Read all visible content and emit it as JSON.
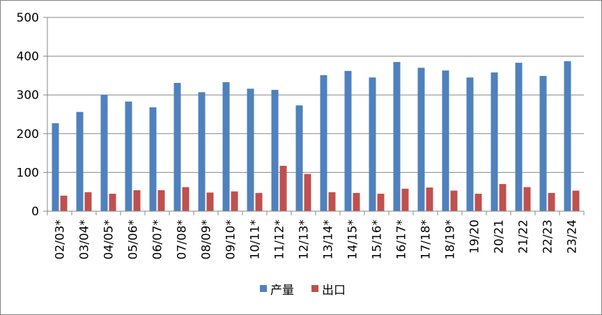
{
  "chart_data": {
    "type": "bar",
    "categories": [
      "02/03*",
      "03/04*",
      "04/05*",
      "05/06*",
      "06/07*",
      "07/08*",
      "08/09*",
      "09/10*",
      "10/11*",
      "11/12*",
      "12/13*",
      "13/14*",
      "14/15*",
      "15/16*",
      "16/17*",
      "17/18*",
      "18/19*",
      "19/20",
      "20/21",
      "21/22",
      "22/23",
      "23/24"
    ],
    "series": [
      {
        "name": "产量",
        "color": "#4F81BD",
        "values": [
          227,
          256,
          300,
          283,
          268,
          331,
          307,
          333,
          316,
          313,
          273,
          351,
          362,
          345,
          385,
          370,
          363,
          345,
          358,
          383,
          349,
          387
        ]
      },
      {
        "name": "出口",
        "color": "#C0504D",
        "values": [
          40,
          49,
          45,
          54,
          54,
          62,
          48,
          51,
          47,
          117,
          96,
          49,
          47,
          45,
          58,
          61,
          53,
          45,
          70,
          62,
          47,
          53
        ]
      }
    ],
    "ylim": [
      0,
      500
    ],
    "yticks": [
      "0",
      "100",
      "200",
      "300",
      "400",
      "500"
    ],
    "grid": true,
    "legend_position": "bottom"
  }
}
